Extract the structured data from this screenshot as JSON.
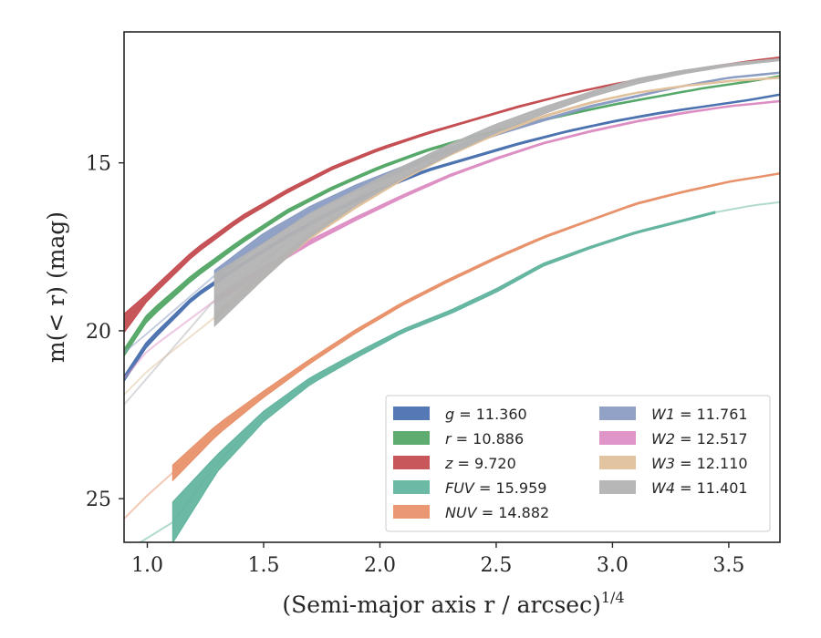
{
  "chart_data": {
    "type": "line",
    "title": "",
    "xlabel": "(Semi-major axis r / arcsec)",
    "xlabel_exponent": "1/4",
    "ylabel": "m(< r) (mag)",
    "xlim": [
      0.9,
      3.72
    ],
    "ylim": [
      26.3,
      11.1
    ],
    "y_inverted": true,
    "grid": false,
    "legend_location": "lower-right",
    "legend_columns": 2,
    "x_ticks": [
      1.0,
      1.5,
      2.0,
      2.5,
      3.0,
      3.5
    ],
    "x_tick_labels": [
      "1.0",
      "1.5",
      "2.0",
      "2.5",
      "3.0",
      "3.5"
    ],
    "y_ticks": [
      15,
      20,
      25
    ],
    "y_tick_labels": [
      "15",
      "20",
      "25"
    ],
    "series": [
      {
        "name": "g",
        "value": "11.360",
        "color": "#4c72b0",
        "faint_start": 0.9,
        "band_start": 0.9,
        "band_end": 3.72,
        "upper": [
          [
            0.9,
            21.35
          ],
          [
            1.0,
            20.3
          ],
          [
            1.2,
            18.95
          ],
          [
            1.4,
            18.0
          ],
          [
            1.6,
            17.15
          ],
          [
            1.8,
            16.4
          ],
          [
            2.0,
            15.75
          ],
          [
            2.2,
            15.2
          ],
          [
            2.4,
            14.8
          ],
          [
            2.6,
            14.4
          ],
          [
            2.8,
            14.05
          ],
          [
            3.0,
            13.75
          ],
          [
            3.2,
            13.5
          ],
          [
            3.4,
            13.3
          ],
          [
            3.6,
            13.1
          ],
          [
            3.72,
            12.95
          ]
        ],
        "lower": [
          [
            0.9,
            21.5
          ],
          [
            1.0,
            20.45
          ],
          [
            1.2,
            19.05
          ],
          [
            1.4,
            18.1
          ],
          [
            1.6,
            17.23
          ],
          [
            1.8,
            16.48
          ],
          [
            2.0,
            15.82
          ],
          [
            2.2,
            15.26
          ],
          [
            2.4,
            14.85
          ],
          [
            2.6,
            14.45
          ],
          [
            2.8,
            14.09
          ],
          [
            3.0,
            13.79
          ],
          [
            3.2,
            13.54
          ],
          [
            3.4,
            13.33
          ],
          [
            3.6,
            13.13
          ],
          [
            3.72,
            12.98
          ]
        ]
      },
      {
        "name": "r",
        "value": "10.886",
        "color": "#55a868",
        "faint_start": 0.9,
        "band_start": 0.9,
        "band_end": 3.72,
        "upper": [
          [
            0.9,
            20.55
          ],
          [
            1.0,
            19.5
          ],
          [
            1.2,
            18.3
          ],
          [
            1.4,
            17.3
          ],
          [
            1.6,
            16.4
          ],
          [
            1.8,
            15.7
          ],
          [
            2.0,
            15.1
          ],
          [
            2.2,
            14.6
          ],
          [
            2.4,
            14.2
          ],
          [
            2.6,
            13.85
          ],
          [
            2.8,
            13.55
          ],
          [
            3.0,
            13.25
          ],
          [
            3.2,
            13.0
          ],
          [
            3.4,
            12.75
          ],
          [
            3.6,
            12.55
          ],
          [
            3.72,
            12.4
          ]
        ],
        "lower": [
          [
            0.9,
            20.75
          ],
          [
            1.0,
            19.7
          ],
          [
            1.2,
            18.45
          ],
          [
            1.4,
            17.42
          ],
          [
            1.6,
            16.5
          ],
          [
            1.8,
            15.78
          ],
          [
            2.0,
            15.17
          ],
          [
            2.2,
            14.66
          ],
          [
            2.4,
            14.25
          ],
          [
            2.6,
            13.9
          ],
          [
            2.8,
            13.59
          ],
          [
            3.0,
            13.29
          ],
          [
            3.2,
            13.03
          ],
          [
            3.4,
            12.78
          ],
          [
            3.6,
            12.58
          ],
          [
            3.72,
            12.43
          ]
        ]
      },
      {
        "name": "z",
        "value": "9.720",
        "color": "#c44e52",
        "faint_start": 0.9,
        "band_start": 0.9,
        "band_end": 3.72,
        "upper": [
          [
            0.9,
            19.5
          ],
          [
            1.0,
            18.9
          ],
          [
            1.2,
            17.6
          ],
          [
            1.4,
            16.6
          ],
          [
            1.6,
            15.8
          ],
          [
            1.8,
            15.1
          ],
          [
            2.0,
            14.55
          ],
          [
            2.2,
            14.1
          ],
          [
            2.4,
            13.7
          ],
          [
            2.6,
            13.3
          ],
          [
            2.8,
            12.95
          ],
          [
            3.0,
            12.65
          ],
          [
            3.2,
            12.4
          ],
          [
            3.4,
            12.15
          ],
          [
            3.6,
            11.95
          ],
          [
            3.72,
            11.85
          ]
        ],
        "lower": [
          [
            0.9,
            20.05
          ],
          [
            1.0,
            19.1
          ],
          [
            1.2,
            17.75
          ],
          [
            1.4,
            16.72
          ],
          [
            1.6,
            15.9
          ],
          [
            1.8,
            15.18
          ],
          [
            2.0,
            14.62
          ],
          [
            2.2,
            14.15
          ],
          [
            2.4,
            13.74
          ],
          [
            2.6,
            13.34
          ],
          [
            2.8,
            12.98
          ],
          [
            3.0,
            12.68
          ],
          [
            3.2,
            12.43
          ],
          [
            3.4,
            12.18
          ],
          [
            3.6,
            11.98
          ],
          [
            3.72,
            11.88
          ]
        ]
      },
      {
        "name": "FUV",
        "value": "15.959",
        "color": "#64b5a0",
        "faint_start": 0.97,
        "band_start": 1.11,
        "band_end": 3.44,
        "upper": [
          [
            0.97,
            26.3
          ],
          [
            1.11,
            25.1
          ],
          [
            1.3,
            23.7
          ],
          [
            1.5,
            22.4
          ],
          [
            1.7,
            21.4
          ],
          [
            1.9,
            20.65
          ],
          [
            2.1,
            19.95
          ],
          [
            2.3,
            19.4
          ],
          [
            2.5,
            18.75
          ],
          [
            2.7,
            18.0
          ],
          [
            2.9,
            17.5
          ],
          [
            3.1,
            17.05
          ],
          [
            3.3,
            16.7
          ],
          [
            3.44,
            16.45
          ],
          [
            3.6,
            16.25
          ],
          [
            3.72,
            16.15
          ]
        ],
        "lower": [
          [
            0.97,
            26.3
          ],
          [
            1.11,
            26.3
          ],
          [
            1.3,
            24.2
          ],
          [
            1.5,
            22.7
          ],
          [
            1.7,
            21.6
          ],
          [
            1.9,
            20.8
          ],
          [
            2.1,
            20.05
          ],
          [
            2.3,
            19.5
          ],
          [
            2.5,
            18.85
          ],
          [
            2.7,
            18.08
          ],
          [
            2.9,
            17.56
          ],
          [
            3.1,
            17.1
          ],
          [
            3.3,
            16.75
          ],
          [
            3.44,
            16.5
          ],
          [
            3.6,
            16.29
          ],
          [
            3.72,
            16.19
          ]
        ]
      },
      {
        "name": "NUV",
        "value": "14.882",
        "color": "#e8926b",
        "faint_start": 0.9,
        "band_start": 1.11,
        "band_end": 3.72,
        "upper": [
          [
            0.9,
            25.6
          ],
          [
            1.0,
            24.9
          ],
          [
            1.11,
            24.0
          ],
          [
            1.3,
            22.8
          ],
          [
            1.5,
            21.8
          ],
          [
            1.7,
            20.85
          ],
          [
            1.9,
            19.95
          ],
          [
            2.1,
            19.15
          ],
          [
            2.3,
            18.45
          ],
          [
            2.5,
            17.8
          ],
          [
            2.7,
            17.2
          ],
          [
            2.9,
            16.7
          ],
          [
            3.1,
            16.2
          ],
          [
            3.3,
            15.85
          ],
          [
            3.5,
            15.55
          ],
          [
            3.72,
            15.3
          ]
        ],
        "lower": [
          [
            0.9,
            25.6
          ],
          [
            1.0,
            24.9
          ],
          [
            1.11,
            24.45
          ],
          [
            1.3,
            23.1
          ],
          [
            1.5,
            21.98
          ],
          [
            1.7,
            20.97
          ],
          [
            1.9,
            20.05
          ],
          [
            2.1,
            19.23
          ],
          [
            2.3,
            18.52
          ],
          [
            2.5,
            17.86
          ],
          [
            2.7,
            17.25
          ],
          [
            2.9,
            16.74
          ],
          [
            3.1,
            16.24
          ],
          [
            3.3,
            15.89
          ],
          [
            3.5,
            15.58
          ],
          [
            3.72,
            15.33
          ]
        ]
      },
      {
        "name": "W1",
        "value": "11.761",
        "color": "#8c9dc4",
        "faint_start": 0.9,
        "band_start": 1.29,
        "band_end": 3.72,
        "upper": [
          [
            0.9,
            20.55
          ],
          [
            1.0,
            20.0
          ],
          [
            1.29,
            18.2
          ],
          [
            1.5,
            17.1
          ],
          [
            1.7,
            16.3
          ],
          [
            1.9,
            15.65
          ],
          [
            2.1,
            15.1
          ],
          [
            2.3,
            14.55
          ],
          [
            2.5,
            14.1
          ],
          [
            2.7,
            13.7
          ],
          [
            2.9,
            13.3
          ],
          [
            3.1,
            13.0
          ],
          [
            3.3,
            12.7
          ],
          [
            3.5,
            12.45
          ],
          [
            3.72,
            12.3
          ]
        ],
        "lower": [
          [
            0.9,
            20.75
          ],
          [
            1.0,
            20.15
          ],
          [
            1.29,
            18.5
          ],
          [
            1.5,
            17.35
          ],
          [
            1.7,
            16.5
          ],
          [
            1.9,
            15.82
          ],
          [
            2.1,
            15.24
          ],
          [
            2.3,
            14.66
          ],
          [
            2.5,
            14.18
          ],
          [
            2.7,
            13.76
          ],
          [
            2.9,
            13.35
          ],
          [
            3.1,
            13.04
          ],
          [
            3.3,
            12.73
          ],
          [
            3.5,
            12.48
          ],
          [
            3.72,
            12.33
          ]
        ]
      },
      {
        "name": "W2",
        "value": "12.517",
        "color": "#dd8fc4",
        "faint_start": 0.9,
        "band_start": 1.29,
        "band_end": 3.72,
        "upper": [
          [
            0.9,
            21.3
          ],
          [
            1.0,
            20.5
          ],
          [
            1.29,
            19.0
          ],
          [
            1.5,
            18.1
          ],
          [
            1.7,
            17.3
          ],
          [
            1.9,
            16.6
          ],
          [
            2.1,
            15.95
          ],
          [
            2.3,
            15.35
          ],
          [
            2.5,
            14.85
          ],
          [
            2.7,
            14.4
          ],
          [
            2.9,
            14.05
          ],
          [
            3.1,
            13.75
          ],
          [
            3.3,
            13.5
          ],
          [
            3.5,
            13.3
          ],
          [
            3.72,
            13.15
          ]
        ],
        "lower": [
          [
            0.9,
            21.55
          ],
          [
            1.0,
            20.7
          ],
          [
            1.29,
            19.2
          ],
          [
            1.5,
            18.25
          ],
          [
            1.7,
            17.42
          ],
          [
            1.9,
            16.7
          ],
          [
            2.1,
            16.03
          ],
          [
            2.3,
            15.41
          ],
          [
            2.5,
            14.9
          ],
          [
            2.7,
            14.44
          ],
          [
            2.9,
            14.09
          ],
          [
            3.1,
            13.79
          ],
          [
            3.3,
            13.54
          ],
          [
            3.5,
            13.33
          ],
          [
            3.72,
            13.18
          ]
        ]
      },
      {
        "name": "W3",
        "value": "12.110",
        "color": "#e0c19c",
        "faint_start": 0.9,
        "band_start": 1.29,
        "band_end": 3.72,
        "upper": [
          [
            0.9,
            21.8
          ],
          [
            1.0,
            21.1
          ],
          [
            1.29,
            19.5
          ],
          [
            1.5,
            18.2
          ],
          [
            1.7,
            17.1
          ],
          [
            1.9,
            16.2
          ],
          [
            2.1,
            15.4
          ],
          [
            2.3,
            14.7
          ],
          [
            2.5,
            14.1
          ],
          [
            2.7,
            13.6
          ],
          [
            2.9,
            13.2
          ],
          [
            3.1,
            12.9
          ],
          [
            3.3,
            12.7
          ],
          [
            3.5,
            12.55
          ],
          [
            3.72,
            12.45
          ]
        ],
        "lower": [
          [
            0.9,
            22.0
          ],
          [
            1.0,
            21.3
          ],
          [
            1.29,
            19.7
          ],
          [
            1.5,
            18.4
          ],
          [
            1.7,
            17.26
          ],
          [
            1.9,
            16.33
          ],
          [
            2.1,
            15.5
          ],
          [
            2.3,
            14.78
          ],
          [
            2.5,
            14.16
          ],
          [
            2.7,
            13.65
          ],
          [
            2.9,
            13.24
          ],
          [
            3.1,
            12.93
          ],
          [
            3.3,
            12.73
          ],
          [
            3.5,
            12.58
          ],
          [
            3.72,
            12.48
          ]
        ]
      },
      {
        "name": "W4",
        "value": "11.401",
        "color": "#b3b3b3",
        "faint_start": 0.9,
        "band_start": 1.29,
        "band_end": 3.72,
        "upper": [
          [
            0.9,
            22.1
          ],
          [
            1.0,
            21.3
          ],
          [
            1.29,
            18.3
          ],
          [
            1.5,
            17.4
          ],
          [
            1.7,
            16.5
          ],
          [
            1.9,
            15.8
          ],
          [
            2.1,
            15.1
          ],
          [
            2.3,
            14.45
          ],
          [
            2.5,
            13.85
          ],
          [
            2.7,
            13.35
          ],
          [
            2.9,
            12.9
          ],
          [
            3.1,
            12.5
          ],
          [
            3.3,
            12.25
          ],
          [
            3.5,
            12.05
          ],
          [
            3.72,
            11.9
          ]
        ],
        "lower": [
          [
            0.9,
            22.3
          ],
          [
            1.0,
            21.5
          ],
          [
            1.29,
            19.85
          ],
          [
            1.5,
            18.45
          ],
          [
            1.7,
            17.2
          ],
          [
            1.9,
            16.25
          ],
          [
            2.1,
            15.45
          ],
          [
            2.3,
            14.75
          ],
          [
            2.5,
            14.1
          ],
          [
            2.7,
            13.55
          ],
          [
            2.9,
            13.05
          ],
          [
            3.1,
            12.65
          ],
          [
            3.3,
            12.35
          ],
          [
            3.5,
            12.12
          ],
          [
            3.72,
            11.95
          ]
        ]
      }
    ]
  }
}
